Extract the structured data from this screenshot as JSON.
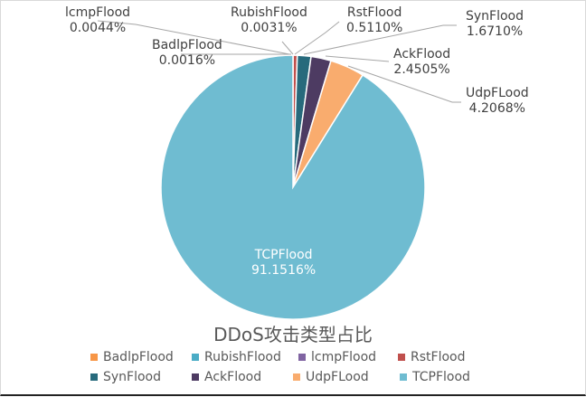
{
  "chart_data": {
    "type": "pie",
    "title": "DDoS攻击类型占比",
    "categories": [
      "BadlpFlood",
      "RubishFlood",
      "lcmpFlood",
      "RstFlood",
      "SynFlood",
      "AckFlood",
      "UdpFLood",
      "TCPFlood"
    ],
    "values": [
      0.0016,
      0.0031,
      0.0044,
      0.511,
      1.671,
      2.4505,
      4.2068,
      91.1516
    ],
    "value_labels": [
      "0.0016%",
      "0.0031%",
      "0.0044%",
      "0.5110%",
      "1.6710%",
      "2.4505%",
      "4.2068%",
      "91.1516%"
    ],
    "colors": [
      "#f79646",
      "#4bacc6",
      "#8064a2",
      "#c0504d",
      "#276a7c",
      "#4d3b62",
      "#f9ac6e",
      "#6fbcd1"
    ],
    "legend_position": "bottom",
    "unit": "%"
  },
  "labels": {
    "BadlpFlood": {
      "name": "BadlpFlood",
      "value": "0.0016%"
    },
    "RubishFlood": {
      "name": "RubishFlood",
      "value": "0.0031%"
    },
    "lcmpFlood": {
      "name": "lcmpFlood",
      "value": "0.0044%"
    },
    "RstFlood": {
      "name": "RstFlood",
      "value": "0.5110%"
    },
    "SynFlood": {
      "name": "SynFlood",
      "value": "1.6710%"
    },
    "AckFlood": {
      "name": "AckFlood",
      "value": "2.4505%"
    },
    "UdpFLood": {
      "name": "UdpFLood",
      "value": "4.2068%"
    },
    "TCPFlood": {
      "name": "TCPFlood",
      "value": "91.1516%"
    }
  },
  "legend": {
    "row1": [
      "BadlpFlood",
      "RubishFlood",
      "lcmpFlood",
      "RstFlood"
    ],
    "row2": [
      "SynFlood",
      "AckFlood",
      "UdpFLood",
      "TCPFlood"
    ]
  }
}
